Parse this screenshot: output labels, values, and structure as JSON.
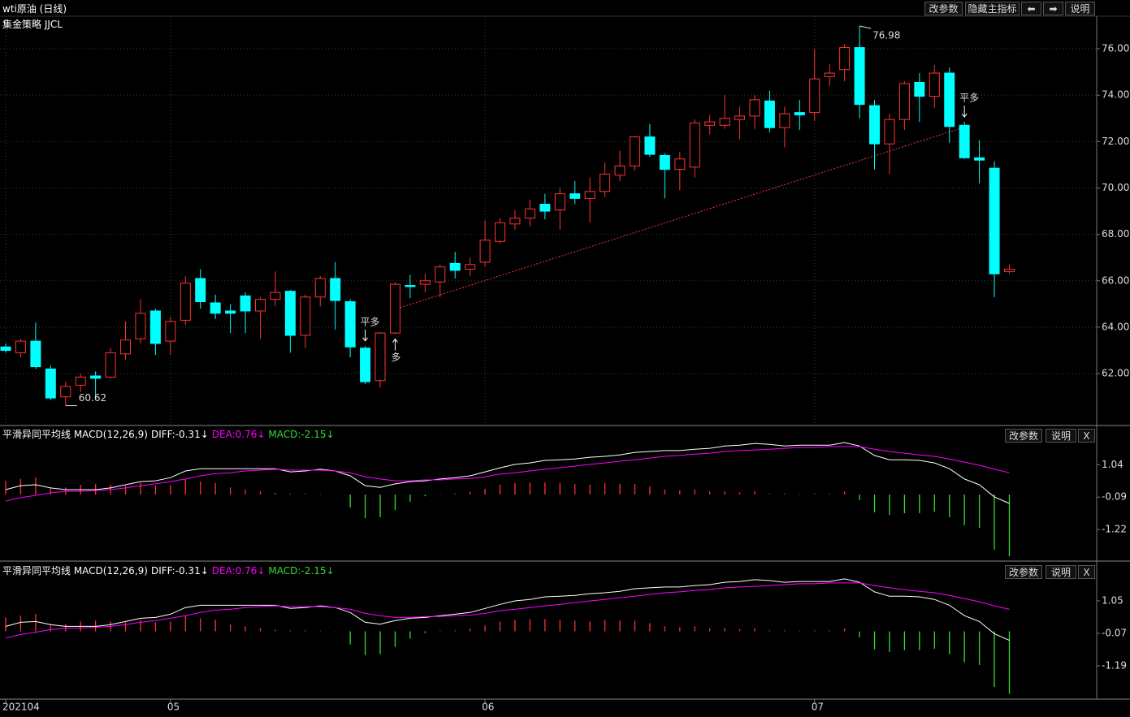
{
  "header": {
    "title": "wti原油 (日线)",
    "subtitle": "集金策略 JJCL",
    "buttons": [
      "改参数",
      "隐藏主指标",
      "⬅",
      "➡",
      "说明"
    ]
  },
  "chart_data": [
    {
      "type": "candlestick",
      "categories": [
        "202104",
        null,
        null,
        null,
        null,
        null,
        null,
        null,
        null,
        null,
        null,
        "05",
        null,
        null,
        null,
        null,
        null,
        null,
        null,
        null,
        null,
        null,
        null,
        null,
        null,
        null,
        null,
        null,
        null,
        null,
        null,
        null,
        "06",
        null,
        null,
        null,
        null,
        null,
        null,
        null,
        null,
        null,
        null,
        null,
        null,
        null,
        null,
        null,
        null,
        null,
        null,
        null,
        null,
        null,
        "07",
        null,
        null,
        null,
        null,
        null,
        null,
        null,
        null,
        null,
        null,
        null,
        null,
        null
      ],
      "open": [
        63.15,
        62.9,
        63.4,
        62.2,
        61.0,
        61.5,
        61.9,
        61.85,
        62.85,
        63.5,
        64.7,
        63.4,
        64.3,
        66.1,
        65.05,
        64.7,
        65.35,
        64.7,
        65.2,
        65.55,
        63.65,
        65.3,
        66.1,
        65.1,
        63.1,
        61.7,
        63.75,
        65.8,
        65.85,
        65.95,
        66.75,
        66.5,
        66.8,
        67.7,
        68.45,
        68.7,
        69.3,
        69.05,
        69.75,
        69.55,
        69.85,
        70.55,
        70.95,
        72.2,
        71.4,
        70.8,
        70.9,
        72.7,
        72.7,
        72.95,
        73.1,
        73.75,
        72.6,
        73.25,
        73.25,
        74.8,
        75.1,
        76.05,
        73.55,
        71.9,
        72.95,
        74.55,
        73.95,
        74.95,
        72.7,
        71.3,
        70.85,
        66.4
      ],
      "high": [
        63.3,
        63.5,
        64.2,
        62.35,
        61.65,
        62.0,
        62.1,
        63.1,
        64.25,
        65.2,
        64.8,
        64.45,
        66.2,
        66.5,
        65.4,
        65.0,
        65.5,
        65.3,
        66.4,
        65.6,
        65.4,
        66.2,
        66.8,
        65.2,
        63.2,
        63.8,
        65.95,
        66.25,
        66.3,
        66.7,
        67.25,
        67.0,
        68.6,
        68.7,
        69.05,
        69.5,
        69.75,
        70.0,
        70.3,
        70.45,
        71.1,
        71.6,
        72.25,
        72.75,
        71.5,
        71.55,
        72.95,
        73.15,
        74.0,
        73.5,
        74.0,
        74.2,
        73.5,
        73.8,
        76.0,
        75.35,
        76.2,
        76.98,
        73.8,
        73.2,
        74.6,
        74.95,
        75.3,
        75.2,
        72.85,
        72.05,
        71.15,
        66.7
      ],
      "low": [
        62.9,
        62.7,
        62.2,
        60.85,
        60.62,
        61.2,
        60.9,
        61.8,
        62.6,
        63.3,
        62.8,
        62.8,
        64.1,
        64.8,
        64.35,
        63.75,
        63.75,
        63.5,
        64.9,
        62.9,
        63.1,
        64.9,
        63.9,
        62.7,
        61.55,
        61.4,
        63.7,
        65.25,
        65.5,
        65.3,
        66.1,
        66.2,
        66.6,
        67.6,
        68.2,
        68.35,
        68.65,
        68.2,
        69.3,
        68.5,
        69.6,
        70.3,
        70.75,
        71.35,
        69.55,
        69.9,
        70.45,
        72.3,
        72.55,
        72.1,
        72.55,
        72.4,
        71.75,
        72.5,
        72.9,
        74.4,
        74.6,
        73.0,
        70.8,
        70.6,
        72.5,
        72.85,
        73.45,
        71.95,
        71.25,
        70.2,
        65.3,
        66.3
      ],
      "close": [
        63.0,
        63.4,
        62.3,
        60.95,
        61.45,
        61.85,
        61.8,
        62.9,
        63.45,
        64.6,
        63.3,
        64.25,
        65.9,
        65.1,
        64.6,
        64.6,
        64.7,
        65.2,
        65.5,
        63.65,
        65.3,
        66.1,
        65.15,
        63.15,
        61.65,
        63.75,
        65.85,
        65.75,
        66.0,
        66.6,
        66.45,
        66.7,
        67.75,
        68.5,
        68.7,
        69.1,
        69.0,
        69.75,
        69.55,
        69.85,
        70.6,
        70.95,
        72.2,
        71.45,
        70.8,
        71.25,
        72.8,
        72.85,
        73.0,
        73.1,
        73.8,
        72.6,
        73.2,
        73.15,
        74.7,
        74.95,
        76.05,
        73.6,
        71.9,
        72.95,
        74.5,
        73.95,
        74.95,
        72.65,
        71.3,
        71.2,
        66.3,
        66.5
      ],
      "up_color": "#ff3232",
      "down_color": "#00ffff",
      "ylim": [
        59.8,
        77.4
      ],
      "yticks": [
        {
          "value": 62,
          "label": "62.00"
        },
        {
          "value": 64,
          "label": "64.00"
        },
        {
          "value": 66,
          "label": "66.00"
        },
        {
          "value": 68,
          "label": "68.00"
        },
        {
          "value": 70,
          "label": "70.00"
        },
        {
          "value": 72,
          "label": "72.00"
        },
        {
          "value": 74,
          "label": "74.00"
        },
        {
          "value": 76,
          "label": "76.00"
        }
      ],
      "grid": true,
      "annotations": [
        {
          "index": 57,
          "value": 76.98
        },
        {
          "index": 4,
          "value": 60.62
        }
      ],
      "signals": [
        {
          "index": 24,
          "label": "平多",
          "color": "#33cc33",
          "arrow": "down"
        },
        {
          "index": 26,
          "label": "多",
          "color": "#ff3232",
          "arrow": "up"
        },
        {
          "index": 64,
          "label": "平多",
          "color": "#33cc33",
          "arrow": "down"
        }
      ]
    },
    {
      "type": "macd",
      "title": "平滑异同平均线 MACD(12,26,9)",
      "buttons": [
        "改参数",
        "说明",
        "X"
      ],
      "series": [
        {
          "name": "DIFF:-0.31↓",
          "color": "#ffffff",
          "values": [
            0.17,
            0.31,
            0.34,
            0.23,
            0.17,
            0.17,
            0.17,
            0.23,
            0.34,
            0.45,
            0.48,
            0.59,
            0.82,
            0.9,
            0.9,
            0.9,
            0.9,
            0.9,
            0.9,
            0.79,
            0.82,
            0.88,
            0.82,
            0.65,
            0.31,
            0.25,
            0.37,
            0.45,
            0.48,
            0.54,
            0.59,
            0.65,
            0.79,
            0.93,
            1.05,
            1.1,
            1.19,
            1.21,
            1.24,
            1.3,
            1.33,
            1.38,
            1.47,
            1.5,
            1.53,
            1.53,
            1.58,
            1.61,
            1.69,
            1.72,
            1.78,
            1.75,
            1.69,
            1.72,
            1.72,
            1.72,
            1.81,
            1.69,
            1.36,
            1.21,
            1.21,
            1.19,
            1.1,
            0.9,
            0.54,
            0.34,
            -0.08,
            -0.31
          ]
        },
        {
          "name": "DEA:0.76↓",
          "color": "#ff00ff",
          "values": [
            -0.23,
            -0.11,
            -0.03,
            0.06,
            0.11,
            0.11,
            0.14,
            0.17,
            0.23,
            0.31,
            0.37,
            0.45,
            0.54,
            0.65,
            0.73,
            0.76,
            0.82,
            0.85,
            0.88,
            0.85,
            0.85,
            0.85,
            0.82,
            0.76,
            0.62,
            0.54,
            0.48,
            0.48,
            0.51,
            0.51,
            0.54,
            0.56,
            0.62,
            0.71,
            0.76,
            0.82,
            0.88,
            0.93,
            0.99,
            1.05,
            1.1,
            1.16,
            1.21,
            1.27,
            1.33,
            1.36,
            1.41,
            1.44,
            1.5,
            1.53,
            1.55,
            1.58,
            1.61,
            1.64,
            1.64,
            1.67,
            1.67,
            1.67,
            1.58,
            1.5,
            1.44,
            1.38,
            1.33,
            1.24,
            1.13,
            1.02,
            0.88,
            0.76
          ]
        },
        {
          "name": "MACD:-2.15↓",
          "color": "#33dd33",
          "positive_color": "#ff3232",
          "values": [
            0.48,
            0.54,
            0.6,
            0.25,
            0.25,
            0.34,
            0.37,
            0.34,
            0.31,
            0.4,
            0.31,
            0.34,
            0.54,
            0.45,
            0.4,
            0.25,
            0.17,
            0.11,
            0.06,
            0.03,
            0.03,
            0.02,
            0.01,
            -0.45,
            -0.82,
            -0.79,
            -0.54,
            -0.25,
            -0.06,
            0.02,
            0.03,
            0.1,
            0.2,
            0.34,
            0.4,
            0.42,
            0.42,
            0.4,
            0.37,
            0.34,
            0.4,
            0.37,
            0.37,
            0.28,
            0.17,
            0.14,
            0.17,
            0.11,
            0.11,
            0.08,
            0.11,
            0.03,
            0.03,
            0.02,
            0.03,
            0.03,
            0.1,
            -0.2,
            -0.62,
            -0.71,
            -0.65,
            -0.65,
            -0.6,
            -0.79,
            -1.07,
            -1.16,
            -1.92,
            -2.15
          ]
        }
      ],
      "ylim": [
        -2.29,
        2.32
      ],
      "yticks": [
        -1.22,
        -0.09,
        1.04
      ]
    },
    {
      "type": "macd",
      "title": "平滑异同平均线 MACD(12,26,9)",
      "buttons": [
        "改参数",
        "说明",
        "X"
      ],
      "series": [
        {
          "name": "DIFF:-0.31↓",
          "color": "#ffffff",
          "values": [
            0.17,
            0.31,
            0.34,
            0.23,
            0.17,
            0.17,
            0.17,
            0.23,
            0.34,
            0.45,
            0.48,
            0.59,
            0.82,
            0.9,
            0.9,
            0.9,
            0.9,
            0.9,
            0.9,
            0.79,
            0.82,
            0.88,
            0.82,
            0.65,
            0.31,
            0.25,
            0.37,
            0.45,
            0.48,
            0.54,
            0.59,
            0.65,
            0.79,
            0.93,
            1.05,
            1.1,
            1.19,
            1.21,
            1.24,
            1.3,
            1.33,
            1.38,
            1.47,
            1.5,
            1.53,
            1.53,
            1.58,
            1.61,
            1.69,
            1.72,
            1.78,
            1.75,
            1.69,
            1.72,
            1.72,
            1.72,
            1.81,
            1.69,
            1.36,
            1.21,
            1.21,
            1.19,
            1.1,
            0.9,
            0.54,
            0.34,
            -0.08,
            -0.31
          ]
        },
        {
          "name": "DEA:0.76↓",
          "color": "#ff00ff",
          "values": [
            -0.23,
            -0.11,
            -0.03,
            0.06,
            0.11,
            0.11,
            0.14,
            0.17,
            0.23,
            0.31,
            0.37,
            0.45,
            0.54,
            0.65,
            0.73,
            0.76,
            0.82,
            0.85,
            0.88,
            0.85,
            0.85,
            0.85,
            0.82,
            0.76,
            0.62,
            0.54,
            0.48,
            0.48,
            0.51,
            0.51,
            0.54,
            0.56,
            0.62,
            0.71,
            0.76,
            0.82,
            0.88,
            0.93,
            0.99,
            1.05,
            1.1,
            1.16,
            1.21,
            1.27,
            1.33,
            1.36,
            1.41,
            1.44,
            1.5,
            1.53,
            1.55,
            1.58,
            1.61,
            1.64,
            1.64,
            1.67,
            1.67,
            1.67,
            1.58,
            1.5,
            1.44,
            1.38,
            1.33,
            1.24,
            1.13,
            1.02,
            0.88,
            0.76
          ]
        },
        {
          "name": "MACD:-2.15↓",
          "color": "#33dd33",
          "positive_color": "#ff3232",
          "values": [
            0.48,
            0.54,
            0.6,
            0.25,
            0.25,
            0.34,
            0.37,
            0.34,
            0.31,
            0.4,
            0.31,
            0.34,
            0.54,
            0.45,
            0.4,
            0.25,
            0.17,
            0.11,
            0.06,
            0.03,
            0.03,
            0.02,
            0.01,
            -0.45,
            -0.82,
            -0.79,
            -0.54,
            -0.25,
            -0.06,
            0.02,
            0.03,
            0.1,
            0.2,
            0.34,
            0.4,
            0.42,
            0.42,
            0.4,
            0.37,
            0.34,
            0.4,
            0.37,
            0.37,
            0.28,
            0.17,
            0.14,
            0.17,
            0.11,
            0.11,
            0.08,
            0.11,
            0.03,
            0.03,
            0.02,
            0.03,
            0.03,
            0.1,
            -0.2,
            -0.62,
            -0.71,
            -0.65,
            -0.65,
            -0.6,
            -0.79,
            -1.07,
            -1.16,
            -1.92,
            -2.15
          ]
        }
      ],
      "ylim": [
        -2.31,
        2.31
      ],
      "yticks": [
        -1.19,
        -0.07,
        1.05
      ]
    }
  ]
}
